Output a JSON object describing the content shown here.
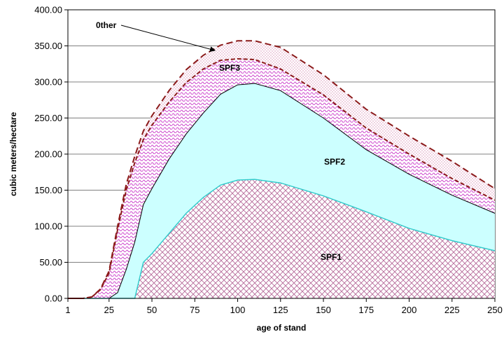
{
  "chart_data": {
    "type": "area",
    "title": "",
    "xlabel": "age of stand",
    "ylabel": "cubic meters/hectare",
    "xlim": [
      1,
      250
    ],
    "ylim": [
      0,
      400
    ],
    "x_ticks": [
      1,
      25,
      50,
      75,
      100,
      125,
      150,
      175,
      200,
      225,
      250
    ],
    "y_ticks": [
      "0.00",
      "50.00",
      "100.00",
      "150.00",
      "200.00",
      "250.00",
      "300.00",
      "350.00",
      "400.00"
    ],
    "x": [
      1,
      10,
      15,
      20,
      25,
      30,
      35,
      40,
      45,
      50,
      60,
      70,
      80,
      90,
      100,
      110,
      125,
      150,
      175,
      200,
      225,
      250
    ],
    "series": [
      {
        "name": "SPF1",
        "values": [
          0,
          0,
          0,
          0,
          0,
          0,
          0,
          0,
          50,
          62,
          90,
          118,
          140,
          157,
          164,
          165,
          160,
          142,
          120,
          97,
          80,
          66
        ]
      },
      {
        "name": "SPF2",
        "values": [
          0,
          0,
          0,
          0,
          0,
          8,
          40,
          78,
          130,
          152,
          193,
          228,
          257,
          283,
          296,
          298,
          288,
          250,
          206,
          172,
          143,
          118
        ]
      },
      {
        "name": "SPF3",
        "values": [
          0,
          0,
          2,
          12,
          35,
          95,
          150,
          188,
          220,
          240,
          272,
          299,
          318,
          330,
          332,
          331,
          318,
          282,
          236,
          200,
          166,
          136
        ]
      },
      {
        "name": "0ther",
        "values": [
          0,
          0,
          2,
          13,
          38,
          100,
          158,
          197,
          232,
          253,
          288,
          317,
          337,
          351,
          357,
          357,
          348,
          310,
          262,
          225,
          190,
          152
        ]
      }
    ],
    "annotations": [
      {
        "text": "0ther",
        "target_series": "0ther"
      },
      {
        "text": "SPF3"
      },
      {
        "text": "SPF2"
      },
      {
        "text": "SPF1"
      }
    ],
    "grid": true,
    "legend": "none",
    "colors": {
      "spf1": "#b66a9a",
      "spf2": "#ccffff",
      "spf3": "#cc44cc",
      "other": "#cc6699",
      "other_line": "#8b1a1a",
      "spf1_line": "#33cccc",
      "spf2_line": "#000000",
      "grid": "#808080"
    }
  }
}
